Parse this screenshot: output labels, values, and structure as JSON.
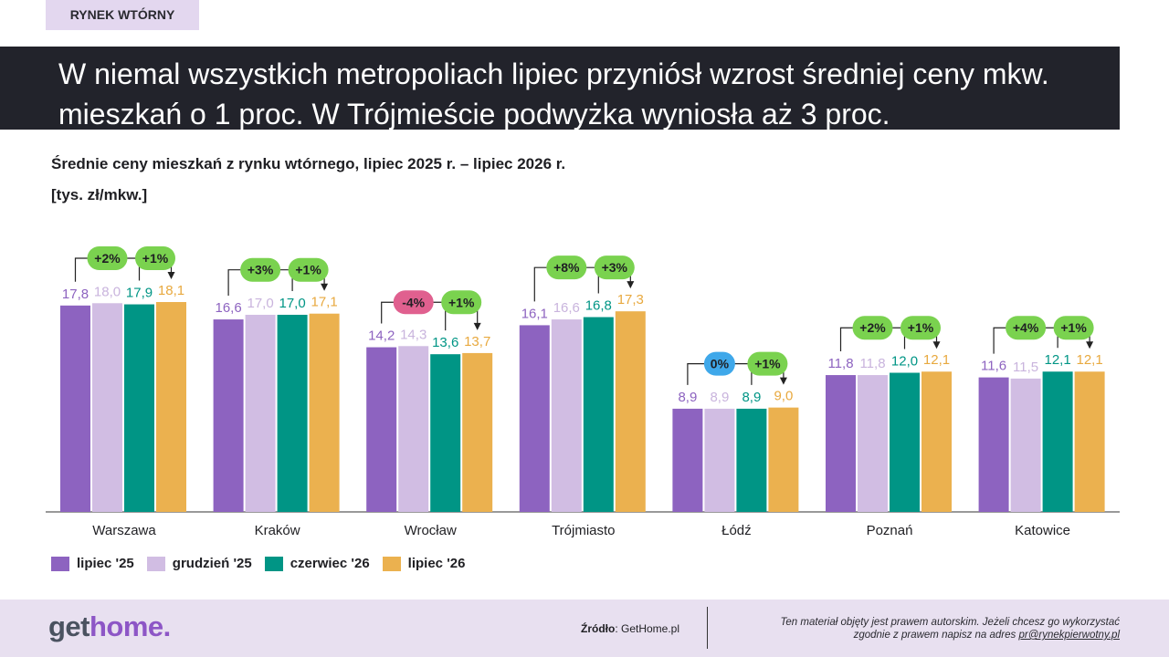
{
  "tag": "RYNEK WTÓRNY",
  "headline": "W niemal wszystkich metropoliach lipiec przyniósł wzrost średniej ceny mkw. mieszkań o 1 proc. W Trójmieście podwyżka wyniosła aż 3 proc.",
  "footer": {
    "logo_part1": "get",
    "logo_part2": "home.",
    "source_label": "Źródło",
    "source_value": ": GetHome.pl",
    "copyright_line1": "Ten materiał objęty jest prawem autorskim. Jeżeli chcesz go wykorzystać",
    "copyright_line2": "zgodnie z prawem napisz na adres ",
    "copyright_email": "pr@rynekpierwotny.pl"
  },
  "chart_data": {
    "type": "bar",
    "title": "Średnie ceny mieszkań z rynku wtórnego, lipiec 2025 r. – lipiec 2026 r.",
    "ylabel": "[tys. zł/mkw.]",
    "categories": [
      "Warszawa",
      "Kraków",
      "Wrocław",
      "Trójmiasto",
      "Łódź",
      "Poznań",
      "Katowice"
    ],
    "series": [
      {
        "name": "lipiec '25",
        "color": "#8d63c0",
        "values": [
          17.8,
          16.6,
          14.2,
          16.1,
          8.9,
          11.8,
          11.6
        ],
        "labels": [
          "17,8",
          "16,6",
          "14,2",
          "16,1",
          "8,9",
          "11,8",
          "11,6"
        ]
      },
      {
        "name": "grudzień '25",
        "color": "#d1bde3",
        "values": [
          18.0,
          17.0,
          14.3,
          16.6,
          8.9,
          11.8,
          11.5
        ],
        "labels": [
          "18,0",
          "17,0",
          "14,3",
          "16,6",
          "8,9",
          "11,8",
          "11,5"
        ]
      },
      {
        "name": "czerwiec '26",
        "color": "#009585",
        "values": [
          17.9,
          17.0,
          13.6,
          16.8,
          8.9,
          12.0,
          12.1
        ],
        "labels": [
          "17,9",
          "17,0",
          "13,6",
          "16,8",
          "8,9",
          "12,0",
          "12,1"
        ]
      },
      {
        "name": "lipiec '26",
        "color": "#ebb14f",
        "values": [
          18.1,
          17.1,
          13.7,
          17.3,
          9.0,
          12.1,
          12.1
        ],
        "labels": [
          "18,1",
          "17,1",
          "13,7",
          "17,3",
          "9,0",
          "12,1",
          "12,1"
        ]
      }
    ],
    "annual_change": [
      "+2%",
      "+3%",
      "-4%",
      "+8%",
      "0%",
      "+2%",
      "+4%"
    ],
    "annual_change_colors": [
      "#7ad24f",
      "#7ad24f",
      "#e0608f",
      "#7ad24f",
      "#3fa8ea",
      "#7ad24f",
      "#7ad24f"
    ],
    "monthly_change": [
      "+1%",
      "+1%",
      "+1%",
      "+3%",
      "+1%",
      "+1%",
      "+1%"
    ],
    "monthly_change_colors": [
      "#7ad24f",
      "#7ad24f",
      "#7ad24f",
      "#7ad24f",
      "#7ad24f",
      "#7ad24f",
      "#7ad24f"
    ],
    "ylim": [
      0,
      18.1
    ],
    "grid": false,
    "legend_position": "bottom-left"
  }
}
